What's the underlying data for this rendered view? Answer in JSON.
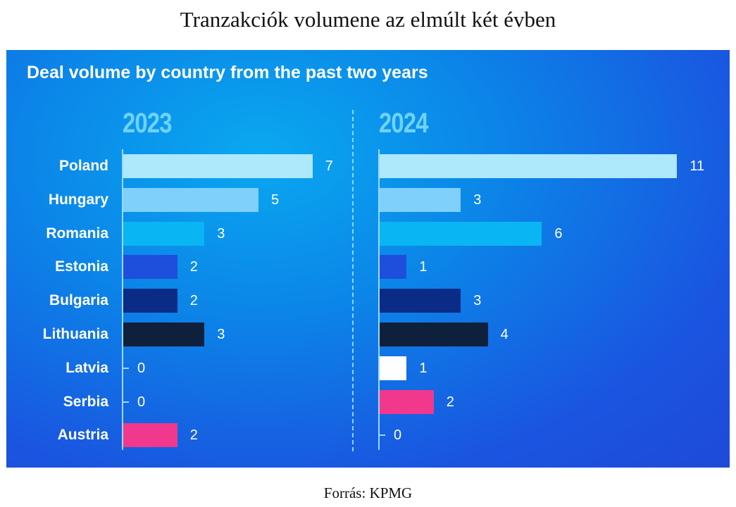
{
  "page_title": "Tranzakciók volumene az elmúlt két évben",
  "source": "Forrás: KPMG",
  "chart_data": {
    "type": "bar",
    "orientation": "horizontal",
    "title": "Deal volume by country from the past two years",
    "categories": [
      "Poland",
      "Hungary",
      "Romania",
      "Estonia",
      "Bulgaria",
      "Lithuania",
      "Latvia",
      "Serbia",
      "Austria"
    ],
    "series": [
      {
        "name": "2023",
        "values": [
          7,
          5,
          3,
          2,
          2,
          3,
          0,
          0,
          2
        ]
      },
      {
        "name": "2024",
        "values": [
          11,
          3,
          6,
          1,
          3,
          4,
          1,
          2,
          0
        ]
      }
    ],
    "bar_colors": [
      "#ade8fb",
      "#7fd0fb",
      "#09b5f2",
      "#1e4fdc",
      "#0a2b86",
      "#0e203b",
      "#ffffff",
      "#f2388c",
      "#f2388c"
    ],
    "bar_colors_2024": [
      "#ade8fb",
      "#7fd0fb",
      "#09b5f2",
      "#1e4fdc",
      "#0a2b86",
      "#0e203b",
      "#ffffff",
      "#f2388c",
      "#f2388c"
    ],
    "xlim": [
      0,
      11
    ],
    "grid": false,
    "legend": "none"
  }
}
